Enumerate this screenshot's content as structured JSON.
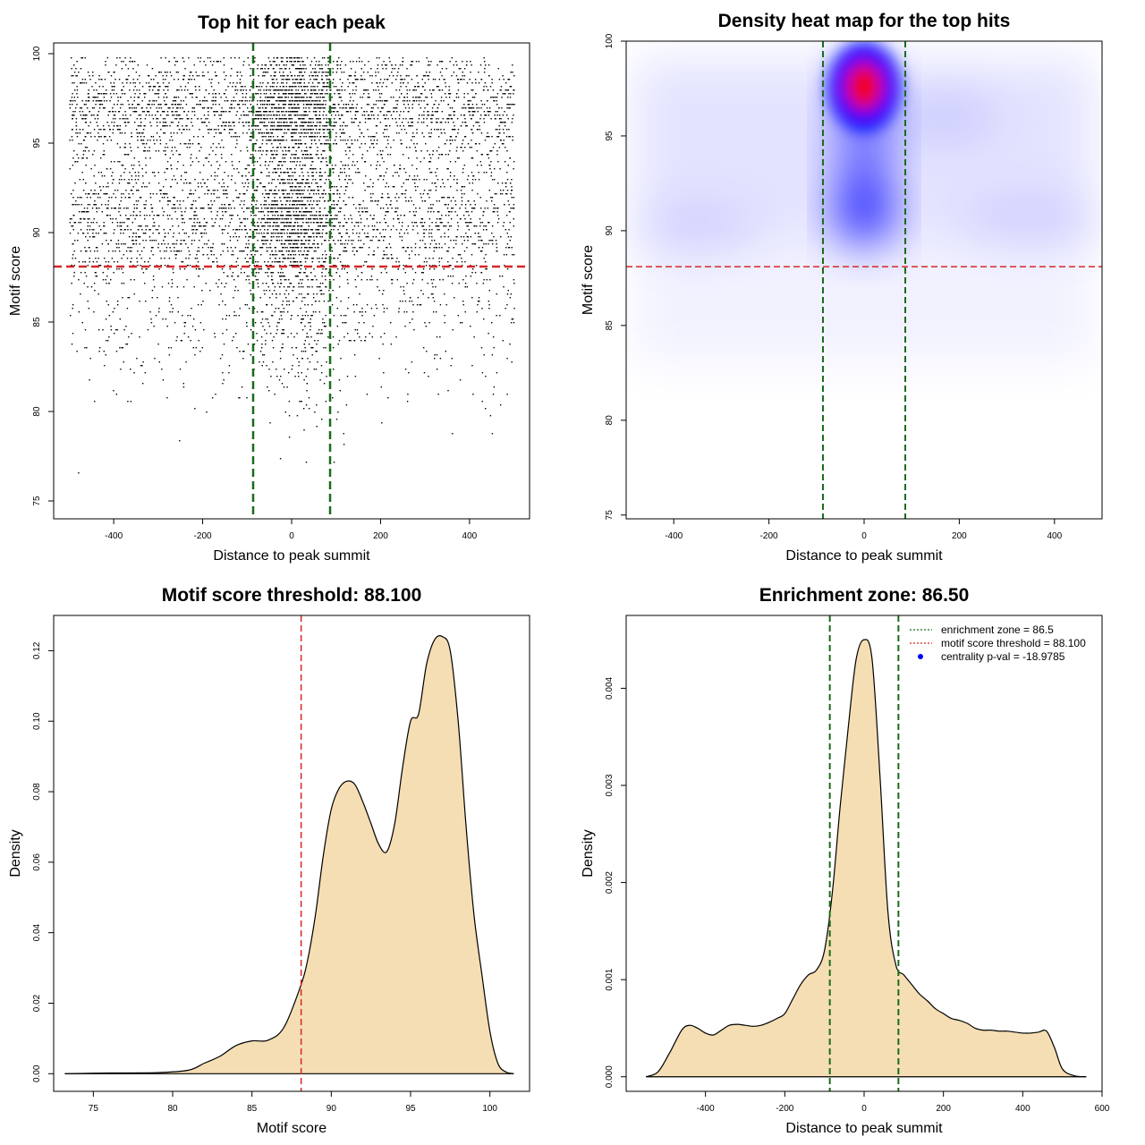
{
  "colors": {
    "threshold": "#d62728",
    "zone": "#1a6b1a",
    "fill": "#f5deb3",
    "heat_low": "#ffffff",
    "heat_mid": "#0000ff",
    "heat_high": "#ff0000",
    "pval": "#0000ff"
  },
  "chart_data": [
    {
      "type": "scatter",
      "title": "Top hit for each peak",
      "xlabel": "Distance to peak summit",
      "ylabel": "Motif score",
      "xlim": [
        -535,
        535
      ],
      "ylim": [
        74,
        100.6
      ],
      "xticks": [
        -400,
        -200,
        0,
        200,
        400
      ],
      "yticks": [
        75,
        80,
        85,
        90,
        95,
        100
      ],
      "xtick_labels": [
        "-400",
        "-200",
        "0",
        "200",
        "400"
      ],
      "ytick_labels": [
        "75",
        "80",
        "85",
        "90",
        "95",
        "100"
      ],
      "threshold_y": 88.1,
      "zone_x": [
        -86.5,
        86.5
      ],
      "n_points": 7000,
      "distribution": "uniform x in [-500, 500]; y clustered around 97 and 91; dense central column around x = 0"
    },
    {
      "type": "heatmap",
      "title": "Density heat map for the top hits",
      "xlabel": "Distance to peak summit",
      "ylabel": "Motif score",
      "xlim": [
        -500,
        500
      ],
      "ylim": [
        74.8,
        100
      ],
      "xticks": [
        -400,
        -200,
        0,
        200,
        400
      ],
      "yticks": [
        75,
        80,
        85,
        90,
        95,
        100
      ],
      "xtick_labels": [
        "-400",
        "-200",
        "0",
        "200",
        "400"
      ],
      "ytick_labels": [
        "75",
        "80",
        "85",
        "90",
        "95",
        "100"
      ],
      "threshold_y": 88.1,
      "zone_x": [
        -86.5,
        86.5
      ],
      "peaks": [
        {
          "x": 0,
          "y": 97.6,
          "density": "max"
        },
        {
          "x": 0,
          "y": 91.0,
          "density": "high"
        }
      ]
    },
    {
      "type": "area",
      "title": "Motif score threshold: 88.100",
      "xlabel": "Motif score",
      "ylabel": "Density",
      "xlim": [
        72.5,
        102.5
      ],
      "ylim": [
        -0.005,
        0.13
      ],
      "xticks": [
        75,
        80,
        85,
        90,
        95,
        100
      ],
      "yticks": [
        0,
        0.02,
        0.04,
        0.06,
        0.08,
        0.1,
        0.12
      ],
      "xtick_labels": [
        "75",
        "80",
        "85",
        "90",
        "95",
        "100"
      ],
      "ytick_labels": [
        "0.00",
        "0.02",
        "0.04",
        "0.06",
        "0.08",
        "0.10",
        "0.12"
      ],
      "threshold_x": 88.1,
      "x": [
        73.2,
        76,
        79,
        81,
        82,
        83,
        84,
        85,
        86,
        87,
        88,
        88.5,
        89,
        89.5,
        90,
        90.5,
        91,
        91.5,
        92,
        92.5,
        93,
        93.5,
        94,
        94.5,
        95,
        95.5,
        96,
        96.5,
        97,
        97.5,
        98,
        98.5,
        99,
        99.5,
        100,
        100.5,
        101,
        101.5
      ],
      "y": [
        0.0,
        0.0002,
        0.0003,
        0.001,
        0.003,
        0.005,
        0.008,
        0.0093,
        0.0095,
        0.013,
        0.024,
        0.032,
        0.045,
        0.062,
        0.075,
        0.081,
        0.083,
        0.082,
        0.077,
        0.071,
        0.065,
        0.063,
        0.071,
        0.087,
        0.1,
        0.102,
        0.116,
        0.123,
        0.124,
        0.12,
        0.1,
        0.07,
        0.045,
        0.028,
        0.012,
        0.003,
        0.0005,
        0.0
      ]
    },
    {
      "type": "area",
      "title": "Enrichment zone: 86.50",
      "xlabel": "Distance to peak summit",
      "ylabel": "Density",
      "xlim": [
        -600,
        600
      ],
      "ylim": [
        -0.00015,
        0.00475
      ],
      "xticks": [
        -400,
        -200,
        0,
        200,
        400,
        600
      ],
      "yticks": [
        0,
        0.001,
        0.002,
        0.003,
        0.004
      ],
      "xtick_labels": [
        "-400",
        "-200",
        "0",
        "200",
        "400",
        "600"
      ],
      "ytick_labels": [
        "0.000",
        "0.001",
        "0.002",
        "0.003",
        "0.004"
      ],
      "zone_x": [
        -86.5,
        86.5
      ],
      "x": [
        -550,
        -520,
        -490,
        -460,
        -440,
        -420,
        -400,
        -380,
        -360,
        -340,
        -320,
        -300,
        -280,
        -260,
        -240,
        -220,
        -200,
        -180,
        -160,
        -140,
        -120,
        -100,
        -80,
        -60,
        -40,
        -20,
        0,
        20,
        40,
        60,
        80,
        100,
        120,
        140,
        160,
        180,
        200,
        220,
        240,
        260,
        280,
        300,
        320,
        340,
        360,
        380,
        400,
        420,
        440,
        460,
        480,
        500,
        530,
        560
      ],
      "y": [
        0.0,
        5e-05,
        0.00025,
        0.00048,
        0.00053,
        0.0005,
        0.00045,
        0.00043,
        0.00048,
        0.00053,
        0.00054,
        0.00053,
        0.00052,
        0.00053,
        0.00056,
        0.0006,
        0.00065,
        0.0008,
        0.00095,
        0.00105,
        0.0011,
        0.0013,
        0.0019,
        0.0028,
        0.0036,
        0.0043,
        0.0045,
        0.0043,
        0.0031,
        0.0017,
        0.00115,
        0.00105,
        0.00095,
        0.00085,
        0.00078,
        0.0007,
        0.00065,
        0.0006,
        0.00058,
        0.00055,
        0.0005,
        0.00048,
        0.00048,
        0.00047,
        0.00047,
        0.00046,
        0.00045,
        0.00045,
        0.00046,
        0.00047,
        0.0003,
        8e-05,
        1e-05,
        0.0
      ],
      "legend": {
        "placement": "top-right",
        "entries": [
          {
            "label": "enrichment zone = 86.5",
            "style": "dotted",
            "color": "#1a6b1a"
          },
          {
            "label": "motif score threshold = 88.100",
            "style": "dotted",
            "color": "#d62728"
          },
          {
            "label": "centrality p-val = -18.9785",
            "style": "point",
            "color": "#0000ff"
          }
        ]
      }
    }
  ]
}
